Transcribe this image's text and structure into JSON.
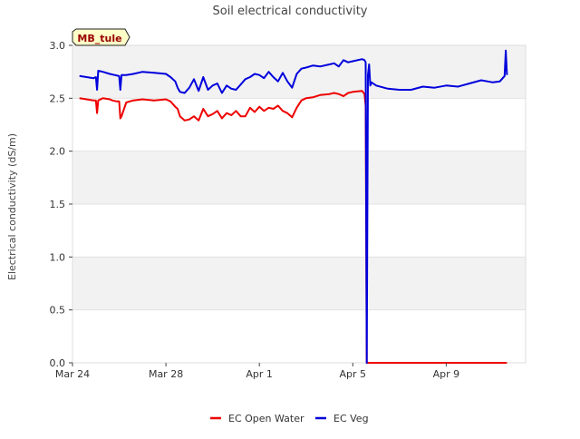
{
  "chart_data": {
    "type": "line",
    "title": "Soil electrical conductivity",
    "xlabel": "",
    "ylabel": "Electrical conductivity (dS/m)",
    "site_label": "MB_tule",
    "x_unit": "days since Mar 24",
    "xlim": [
      0,
      19.4
    ],
    "ylim": [
      0,
      3.0
    ],
    "yticks": [
      0.0,
      0.5,
      1.0,
      1.5,
      2.0,
      2.5,
      3.0
    ],
    "ytick_labels": [
      "0.0",
      "0.5",
      "1.0",
      "1.5",
      "2.0",
      "2.5",
      "3.0"
    ],
    "xticks": [
      0,
      4,
      8,
      12,
      16
    ],
    "xtick_labels": [
      "Mar 24",
      "Mar 28",
      "Apr 1",
      "Apr 5",
      "Apr 9"
    ],
    "grid": true,
    "legend": "bottom-center",
    "series": [
      {
        "name": "EC Open Water",
        "color": "#ee0000",
        "x": [
          0.3,
          0.6,
          0.9,
          1.0,
          1.05,
          1.1,
          1.3,
          1.6,
          1.7,
          1.9,
          2.0,
          2.05,
          2.1,
          2.3,
          2.6,
          3.0,
          3.5,
          4.0,
          4.2,
          4.4,
          4.5,
          4.6,
          4.8,
          5.0,
          5.2,
          5.4,
          5.6,
          5.8,
          6.0,
          6.2,
          6.4,
          6.6,
          6.8,
          7.0,
          7.2,
          7.4,
          7.6,
          7.8,
          8.0,
          8.2,
          8.4,
          8.6,
          8.8,
          9.0,
          9.2,
          9.4,
          9.6,
          9.8,
          10.0,
          10.3,
          10.6,
          11.0,
          11.2,
          11.4,
          11.6,
          11.8,
          12.0,
          12.4,
          12.5,
          12.55,
          12.6,
          13.0,
          14.0,
          15.0,
          16.0,
          17.0,
          18.0,
          18.6
        ],
        "values": [
          2.5,
          2.49,
          2.48,
          2.48,
          2.36,
          2.48,
          2.5,
          2.49,
          2.48,
          2.47,
          2.47,
          2.31,
          2.33,
          2.46,
          2.48,
          2.49,
          2.48,
          2.49,
          2.47,
          2.42,
          2.4,
          2.33,
          2.29,
          2.3,
          2.33,
          2.29,
          2.4,
          2.33,
          2.35,
          2.38,
          2.31,
          2.36,
          2.34,
          2.38,
          2.33,
          2.33,
          2.41,
          2.37,
          2.42,
          2.38,
          2.41,
          2.4,
          2.43,
          2.38,
          2.36,
          2.32,
          2.41,
          2.48,
          2.5,
          2.51,
          2.53,
          2.54,
          2.55,
          2.54,
          2.52,
          2.55,
          2.56,
          2.57,
          2.54,
          2.43,
          0.0,
          0.0,
          0.0,
          0.0,
          0.0,
          0.0,
          0.0,
          0.0
        ]
      },
      {
        "name": "EC Veg",
        "color": "#0000dd",
        "x": [
          0.3,
          0.6,
          0.9,
          1.0,
          1.05,
          1.1,
          1.3,
          1.6,
          1.8,
          2.0,
          2.05,
          2.1,
          2.3,
          2.6,
          3.0,
          3.5,
          4.0,
          4.2,
          4.4,
          4.5,
          4.6,
          4.8,
          5.0,
          5.2,
          5.4,
          5.6,
          5.8,
          6.0,
          6.2,
          6.4,
          6.6,
          6.8,
          7.0,
          7.2,
          7.4,
          7.6,
          7.8,
          8.0,
          8.2,
          8.4,
          8.6,
          8.8,
          9.0,
          9.2,
          9.4,
          9.6,
          9.8,
          10.0,
          10.3,
          10.6,
          11.0,
          11.2,
          11.4,
          11.6,
          11.8,
          12.0,
          12.4,
          12.5,
          12.55,
          12.6,
          12.65,
          12.7,
          12.75,
          12.8,
          13.0,
          13.5,
          14.0,
          14.5,
          15.0,
          15.5,
          16.0,
          16.5,
          17.0,
          17.5,
          18.0,
          18.3,
          18.5,
          18.55,
          18.6
        ],
        "values": [
          2.71,
          2.7,
          2.69,
          2.7,
          2.58,
          2.76,
          2.75,
          2.73,
          2.72,
          2.71,
          2.58,
          2.72,
          2.72,
          2.73,
          2.75,
          2.74,
          2.73,
          2.7,
          2.66,
          2.6,
          2.56,
          2.55,
          2.6,
          2.68,
          2.57,
          2.7,
          2.58,
          2.62,
          2.64,
          2.55,
          2.62,
          2.59,
          2.58,
          2.63,
          2.68,
          2.7,
          2.73,
          2.72,
          2.69,
          2.75,
          2.7,
          2.66,
          2.74,
          2.66,
          2.6,
          2.73,
          2.78,
          2.79,
          2.81,
          2.8,
          2.82,
          2.83,
          2.8,
          2.86,
          2.84,
          2.85,
          2.87,
          2.86,
          2.84,
          0.0,
          2.72,
          2.82,
          2.62,
          2.65,
          2.62,
          2.59,
          2.58,
          2.58,
          2.61,
          2.6,
          2.62,
          2.61,
          2.64,
          2.67,
          2.65,
          2.66,
          2.71,
          2.95,
          2.72
        ]
      }
    ]
  }
}
